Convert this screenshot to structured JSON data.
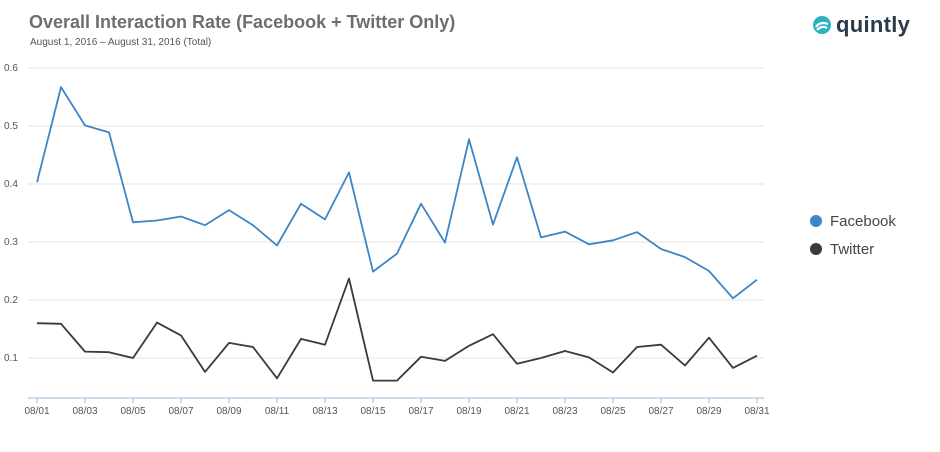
{
  "header": {
    "title": "Overall Interaction Rate (Facebook + Twitter Only)",
    "subtitle": "August 1, 2016 – August 31, 2016 (Total)",
    "logo_text": "quintly"
  },
  "colors": {
    "facebook": "#3d85c6",
    "twitter": "#3a3a3a",
    "grid": "#e3e3e3",
    "axis_text": "#555555",
    "logo_accent": "#2bb3c0"
  },
  "chart_data": {
    "type": "line",
    "title": "Overall Interaction Rate (Facebook + Twitter Only)",
    "subtitle": "August 1, 2016 – August 31, 2016 (Total)",
    "x": [
      "08/01",
      "08/02",
      "08/03",
      "08/04",
      "08/05",
      "08/06",
      "08/07",
      "08/08",
      "08/09",
      "08/10",
      "08/11",
      "08/12",
      "08/13",
      "08/14",
      "08/15",
      "08/16",
      "08/17",
      "08/18",
      "08/19",
      "08/20",
      "08/21",
      "08/22",
      "08/23",
      "08/24",
      "08/25",
      "08/26",
      "08/27",
      "08/28",
      "08/29",
      "08/30",
      "08/31"
    ],
    "x_tick_labels": [
      "08/01",
      "08/03",
      "08/05",
      "08/07",
      "08/09",
      "08/11",
      "08/13",
      "08/15",
      "08/17",
      "08/19",
      "08/21",
      "08/23",
      "08/25",
      "08/27",
      "08/29",
      "08/31"
    ],
    "y_ticks": [
      "0.1",
      "0.2",
      "0.3",
      "0.4",
      "0.5",
      "0.6"
    ],
    "ylim": [
      0,
      0.6
    ],
    "grid": true,
    "legend_position": "right",
    "series": [
      {
        "name": "Facebook",
        "color": "#3d85c6",
        "values": [
          0.403,
          0.567,
          0.501,
          0.489,
          0.334,
          0.337,
          0.344,
          0.329,
          0.355,
          0.329,
          0.294,
          0.366,
          0.339,
          0.42,
          0.249,
          0.28,
          0.366,
          0.299,
          0.477,
          0.33,
          0.446,
          0.308,
          0.318,
          0.296,
          0.303,
          0.317,
          0.288,
          0.274,
          0.25,
          0.203,
          0.235
        ]
      },
      {
        "name": "Twitter",
        "color": "#3a3a3a",
        "values": [
          0.16,
          0.159,
          0.111,
          0.11,
          0.1,
          0.161,
          0.139,
          0.076,
          0.126,
          0.119,
          0.065,
          0.133,
          0.123,
          0.237,
          0.061,
          0.061,
          0.102,
          0.095,
          0.121,
          0.141,
          0.09,
          0.1,
          0.112,
          0.101,
          0.075,
          0.119,
          0.123,
          0.087,
          0.135,
          0.083,
          0.104
        ]
      }
    ]
  }
}
